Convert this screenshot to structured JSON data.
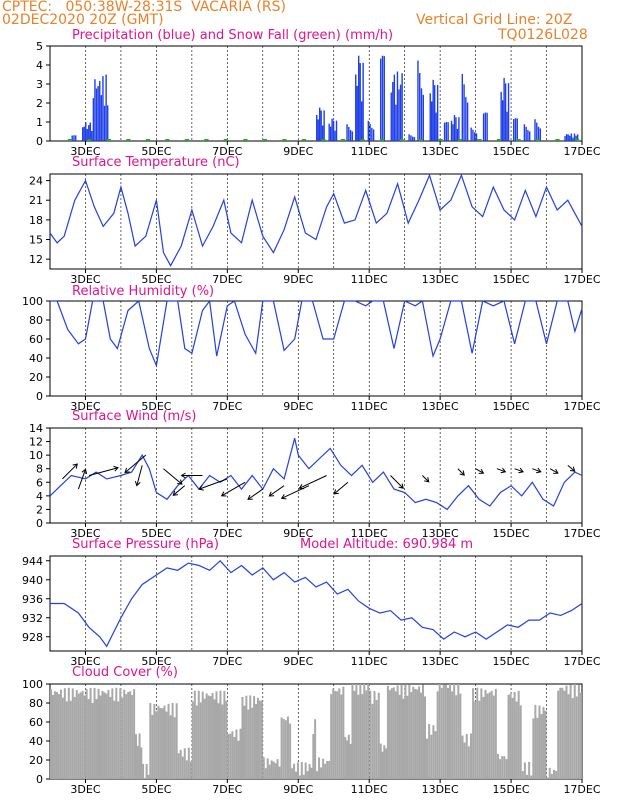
{
  "header": {
    "line1": "CPTEC:   050:38W-28:31S  VACARIA (RS)",
    "line2": "02DEC2020 20Z (GMT)",
    "grid_note": "Vertical Grid Line: 20Z",
    "code": "TQ0126L028",
    "model_altitude": "Model Altitude: 690.984 m"
  },
  "colors": {
    "header": "#e8822a",
    "title": "#e0148c",
    "line": "#2340e0",
    "precip": "#1f3fe8",
    "snow": "#22aa22",
    "cloud": "#a8a8a8"
  },
  "x_labels": [
    "3DEC",
    "5DEC",
    "7DEC",
    "9DEC",
    "11DEC",
    "13DEC",
    "15DEC",
    "17DEC"
  ],
  "chart_data": [
    {
      "type": "bar",
      "title": "Precipitation (blue) and Snow Fall (green) (mm/h)",
      "ylim": [
        0,
        5
      ],
      "yticks": [
        0,
        1,
        2,
        3,
        4,
        5
      ],
      "series": [
        {
          "name": "Precipitation",
          "color": "#1f3fe8",
          "segments": [
            {
              "from": 2.6,
              "to": 2.75,
              "peak": 0.3
            },
            {
              "from": 2.9,
              "to": 3.2,
              "peak": 1.0
            },
            {
              "from": 3.2,
              "to": 3.65,
              "peak": 3.5
            },
            {
              "from": 9.5,
              "to": 9.75,
              "peak": 1.8
            },
            {
              "from": 9.85,
              "to": 10.1,
              "peak": 1.2
            },
            {
              "from": 10.35,
              "to": 10.55,
              "peak": 1.0
            },
            {
              "from": 10.6,
              "to": 10.85,
              "peak": 4.6
            },
            {
              "from": 10.95,
              "to": 11.15,
              "peak": 1.2
            },
            {
              "from": 11.3,
              "to": 11.45,
              "peak": 4.5
            },
            {
              "from": 11.6,
              "to": 11.95,
              "peak": 3.7
            },
            {
              "from": 12.1,
              "to": 12.3,
              "peak": 0.4
            },
            {
              "from": 12.35,
              "to": 12.55,
              "peak": 4.8
            },
            {
              "from": 12.7,
              "to": 12.95,
              "peak": 3.3
            },
            {
              "from": 13.1,
              "to": 13.25,
              "peak": 1.0
            },
            {
              "from": 13.3,
              "to": 13.55,
              "peak": 1.4
            },
            {
              "from": 13.6,
              "to": 13.8,
              "peak": 4.0
            },
            {
              "from": 13.85,
              "to": 14.05,
              "peak": 0.8
            },
            {
              "from": 14.2,
              "to": 14.35,
              "peak": 1.5
            },
            {
              "from": 14.7,
              "to": 14.95,
              "peak": 3.4
            },
            {
              "from": 15.05,
              "to": 15.2,
              "peak": 1.2
            },
            {
              "from": 15.35,
              "to": 15.55,
              "peak": 1.0
            },
            {
              "from": 15.65,
              "to": 15.85,
              "peak": 1.3
            },
            {
              "from": 16.5,
              "to": 16.9,
              "peak": 0.4
            }
          ]
        },
        {
          "name": "Snow Fall",
          "color": "#22aa22",
          "values": [
            0
          ]
        }
      ]
    },
    {
      "type": "line",
      "title": "Surface Temperature (nC)",
      "ylim": [
        10.5,
        25
      ],
      "yticks": [
        12,
        15,
        18,
        21,
        24
      ],
      "x": [
        2,
        2.2,
        2.4,
        2.7,
        3.0,
        3.25,
        3.5,
        3.8,
        4.0,
        4.2,
        4.4,
        4.7,
        5.0,
        5.2,
        5.4,
        5.7,
        6.0,
        6.3,
        6.6,
        6.9,
        7.1,
        7.4,
        7.7,
        8.0,
        8.3,
        8.6,
        8.9,
        9.2,
        9.5,
        9.8,
        10.0,
        10.3,
        10.6,
        10.9,
        11.2,
        11.5,
        11.8,
        12.1,
        12.4,
        12.7,
        13.0,
        13.3,
        13.6,
        13.9,
        14.2,
        14.5,
        14.8,
        15.1,
        15.4,
        15.7,
        16.0,
        16.3,
        16.6,
        16.8,
        17.0
      ],
      "values": [
        16,
        14.5,
        15.5,
        21,
        24,
        20,
        17,
        19,
        23,
        19,
        14,
        15.5,
        21,
        13,
        11,
        14,
        19.5,
        14,
        17,
        21,
        16,
        14.5,
        21,
        15.5,
        13,
        16.5,
        21.5,
        16,
        15,
        20,
        22,
        17.5,
        18,
        22.5,
        17.5,
        19,
        23.5,
        17.5,
        21,
        24.8,
        19.5,
        21,
        24.8,
        20,
        18.5,
        23,
        19.5,
        18,
        22.5,
        18.5,
        23,
        19.5,
        21,
        19,
        17
      ]
    },
    {
      "type": "line",
      "title": "Relative Humidity (%)",
      "ylim": [
        0,
        100
      ],
      "yticks": [
        0,
        20,
        40,
        60,
        80,
        100
      ],
      "x": [
        2,
        2.2,
        2.5,
        2.8,
        3.0,
        3.2,
        3.5,
        3.7,
        3.9,
        4.2,
        4.5,
        4.8,
        5.0,
        5.3,
        5.6,
        5.8,
        6.0,
        6.3,
        6.5,
        6.7,
        7.0,
        7.2,
        7.5,
        7.8,
        8.0,
        8.3,
        8.6,
        8.9,
        9.1,
        9.4,
        9.7,
        10.0,
        10.3,
        10.6,
        10.9,
        11.1,
        11.4,
        11.7,
        12.0,
        12.3,
        12.5,
        12.8,
        13.0,
        13.3,
        13.6,
        13.9,
        14.2,
        14.5,
        14.8,
        15.1,
        15.4,
        15.7,
        16.0,
        16.3,
        16.6,
        16.8,
        17.0
      ],
      "values": [
        100,
        100,
        70,
        55,
        60,
        100,
        100,
        60,
        50,
        90,
        100,
        50,
        32,
        100,
        100,
        50,
        45,
        90,
        100,
        42,
        95,
        100,
        65,
        45,
        100,
        100,
        48,
        60,
        100,
        100,
        60,
        60,
        100,
        100,
        95,
        100,
        100,
        50,
        100,
        95,
        100,
        42,
        60,
        100,
        100,
        45,
        100,
        95,
        100,
        55,
        100,
        100,
        55,
        100,
        100,
        68,
        92
      ]
    },
    {
      "type": "line",
      "title": "Surface Wind (m/s)",
      "ylim": [
        0,
        14
      ],
      "yticks": [
        0,
        2,
        4,
        6,
        8,
        10,
        12,
        14
      ],
      "x": [
        2,
        2.3,
        2.6,
        3.0,
        3.3,
        3.6,
        4.0,
        4.3,
        4.6,
        4.8,
        5.0,
        5.3,
        5.6,
        5.9,
        6.2,
        6.5,
        6.8,
        7.1,
        7.4,
        7.7,
        8.0,
        8.3,
        8.6,
        8.9,
        9.0,
        9.3,
        9.6,
        9.9,
        10.2,
        10.5,
        10.8,
        11.1,
        11.4,
        11.7,
        12.0,
        12.3,
        12.6,
        12.9,
        13.2,
        13.5,
        13.8,
        14.1,
        14.4,
        14.7,
        15.0,
        15.3,
        15.6,
        15.9,
        16.2,
        16.5,
        16.8,
        17.0
      ],
      "values": [
        4,
        5.5,
        7,
        6.5,
        7.5,
        6.5,
        7,
        7.5,
        10,
        8,
        4.5,
        3.5,
        5.5,
        7,
        5,
        7,
        6,
        7,
        5,
        7,
        5,
        8,
        6.5,
        12.5,
        10,
        8,
        9.5,
        11,
        8.5,
        7,
        8.5,
        6,
        7.5,
        5,
        4.5,
        3,
        3.5,
        3,
        2,
        4,
        5.5,
        3.5,
        2.5,
        4.5,
        5.5,
        4,
        6,
        3.5,
        2.5,
        6,
        7.5,
        7
      ]
    },
    {
      "type": "line",
      "title": "Surface Pressure (hPa)",
      "ylim": [
        925,
        945
      ],
      "yticks": [
        928,
        932,
        936,
        940,
        944
      ],
      "x": [
        2,
        2.4,
        2.8,
        3.1,
        3.4,
        3.6,
        3.8,
        4.0,
        4.3,
        4.6,
        5.0,
        5.3,
        5.6,
        5.9,
        6.2,
        6.5,
        6.8,
        7.1,
        7.4,
        7.7,
        8.0,
        8.3,
        8.6,
        8.9,
        9.2,
        9.5,
        9.8,
        10.1,
        10.4,
        10.7,
        11.0,
        11.3,
        11.6,
        11.9,
        12.2,
        12.5,
        12.8,
        13.1,
        13.4,
        13.7,
        14.0,
        14.3,
        14.6,
        14.9,
        15.2,
        15.5,
        15.8,
        16.1,
        16.4,
        16.7,
        17.0
      ],
      "values": [
        935,
        935,
        933,
        930,
        928,
        926,
        929,
        932,
        936,
        939,
        941,
        942.5,
        942,
        943.5,
        943,
        942,
        944,
        941.5,
        943,
        941,
        942.5,
        940,
        941.5,
        939.5,
        940.5,
        938.5,
        939.5,
        937,
        938,
        935.5,
        934,
        933,
        933.5,
        931.5,
        932,
        930,
        929.5,
        927.5,
        929,
        928,
        929,
        927.5,
        929,
        930.5,
        930,
        931.5,
        931.5,
        933,
        932.5,
        933.5,
        935
      ]
    },
    {
      "type": "bar",
      "title": "Cloud Cover (%)",
      "ylim": [
        0,
        100
      ],
      "yticks": [
        0,
        20,
        40,
        60,
        80,
        100
      ],
      "segments": [
        {
          "from": 2.0,
          "to": 4.4,
          "value": 88
        },
        {
          "from": 4.4,
          "to": 4.6,
          "value": 40
        },
        {
          "from": 4.6,
          "to": 4.8,
          "value": 8
        },
        {
          "from": 4.8,
          "to": 5.6,
          "value": 72
        },
        {
          "from": 5.6,
          "to": 6.0,
          "value": 25
        },
        {
          "from": 6.0,
          "to": 7.0,
          "value": 85
        },
        {
          "from": 7.0,
          "to": 7.4,
          "value": 45
        },
        {
          "from": 7.4,
          "to": 8.0,
          "value": 80
        },
        {
          "from": 8.0,
          "to": 8.5,
          "value": 15
        },
        {
          "from": 8.5,
          "to": 8.8,
          "value": 60
        },
        {
          "from": 8.8,
          "to": 9.4,
          "value": 10
        },
        {
          "from": 9.4,
          "to": 9.5,
          "value": 55
        },
        {
          "from": 9.5,
          "to": 9.9,
          "value": 15
        },
        {
          "from": 9.9,
          "to": 10.3,
          "value": 90
        },
        {
          "from": 10.3,
          "to": 10.5,
          "value": 40
        },
        {
          "from": 10.5,
          "to": 11.0,
          "value": 95
        },
        {
          "from": 11.0,
          "to": 11.3,
          "value": 85
        },
        {
          "from": 11.3,
          "to": 11.5,
          "value": 30
        },
        {
          "from": 11.5,
          "to": 12.6,
          "value": 92
        },
        {
          "from": 12.6,
          "to": 12.9,
          "value": 50
        },
        {
          "from": 12.9,
          "to": 13.6,
          "value": 95
        },
        {
          "from": 13.6,
          "to": 13.9,
          "value": 40
        },
        {
          "from": 13.9,
          "to": 14.6,
          "value": 88
        },
        {
          "from": 14.6,
          "to": 14.9,
          "value": 20
        },
        {
          "from": 14.9,
          "to": 15.3,
          "value": 85
        },
        {
          "from": 15.3,
          "to": 15.6,
          "value": 10
        },
        {
          "from": 15.6,
          "to": 16.0,
          "value": 70
        },
        {
          "from": 16.0,
          "to": 16.3,
          "value": 5
        },
        {
          "from": 16.3,
          "to": 17.0,
          "value": 92
        }
      ]
    }
  ]
}
